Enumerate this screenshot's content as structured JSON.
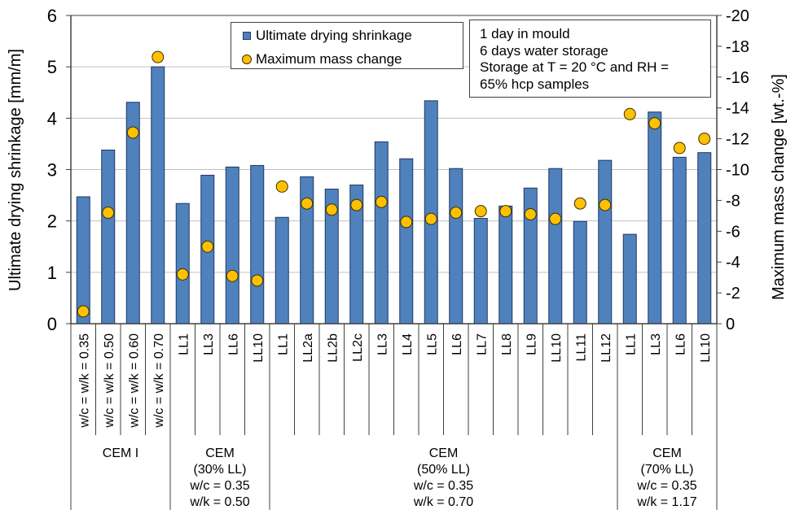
{
  "chart_data": {
    "type": "bar",
    "title": "",
    "xlabel": "",
    "ylabel": "Ultimate drying shrinkage [mm/m]",
    "y2label": "Maximum mass change [wt.-%]",
    "ylim": [
      0,
      6
    ],
    "y2lim": [
      0,
      -20
    ],
    "yticks": [
      "0",
      "1",
      "2",
      "3",
      "4",
      "5",
      "6"
    ],
    "y2ticks": [
      "0",
      "-2",
      "-4",
      "-6",
      "-8",
      "-10",
      "-12",
      "-14",
      "-16",
      "-18",
      "-20"
    ],
    "grid": true,
    "legend_position": "top-center",
    "categories": [
      "w/c = w/k = 0.35",
      "w/c = w/k = 0.50",
      "w/c = w/k = 0.60",
      "w/c = w/k = 0.70",
      "LL1",
      "LL3",
      "LL6",
      "LL10",
      "LL1",
      "LL2a",
      "LL2b",
      "LL2c",
      "LL3",
      "LL4",
      "LL5",
      "LL6",
      "LL7",
      "LL8",
      "LL9",
      "LL10",
      "LL11",
      "LL12",
      "LL1",
      "LL3",
      "LL6",
      "LL10"
    ],
    "groups": [
      {
        "label_lines": [
          "CEM I"
        ],
        "count": 4
      },
      {
        "label_lines": [
          "CEM",
          "(30% LL)",
          "w/c = 0.35",
          "w/k = 0.50"
        ],
        "count": 4
      },
      {
        "label_lines": [
          "CEM",
          "(50% LL)",
          "w/c = 0.35",
          "w/k = 0.70"
        ],
        "count": 14
      },
      {
        "label_lines": [
          "CEM",
          "(70% LL)",
          "w/c = 0.35",
          "w/k = 1.17"
        ],
        "count": 4
      }
    ],
    "series": [
      {
        "name": "Ultimate drying shrinkage",
        "type": "bar",
        "axis": "left",
        "color": "#4f81bd",
        "values": [
          2.47,
          3.38,
          4.31,
          5.0,
          2.34,
          2.89,
          3.05,
          3.08,
          2.07,
          2.86,
          2.62,
          2.7,
          3.54,
          3.21,
          4.34,
          3.02,
          2.05,
          2.29,
          2.64,
          3.02,
          1.99,
          3.18,
          1.74,
          4.12,
          3.24,
          3.33
        ]
      },
      {
        "name": "Maximum mass change",
        "type": "scatter",
        "axis": "right",
        "color": "#ffc000",
        "values": [
          -0.8,
          -7.2,
          -12.4,
          -17.3,
          -3.2,
          -5.0,
          -3.1,
          -2.8,
          -8.9,
          -7.8,
          -7.4,
          -7.7,
          -7.9,
          -6.6,
          -6.8,
          -7.2,
          -7.3,
          -7.3,
          -7.1,
          -6.8,
          -7.8,
          -7.7,
          -13.6,
          -13.0,
          -11.4,
          -12.0
        ]
      }
    ],
    "annotation_lines": [
      "1 day in mould",
      "6 days water storage",
      "Storage at T = 20 °C and RH =",
      "65% hcp samples"
    ]
  },
  "legend": {
    "bar_label": "Ultimate drying shrinkage",
    "dot_label": "Maximum mass change"
  }
}
